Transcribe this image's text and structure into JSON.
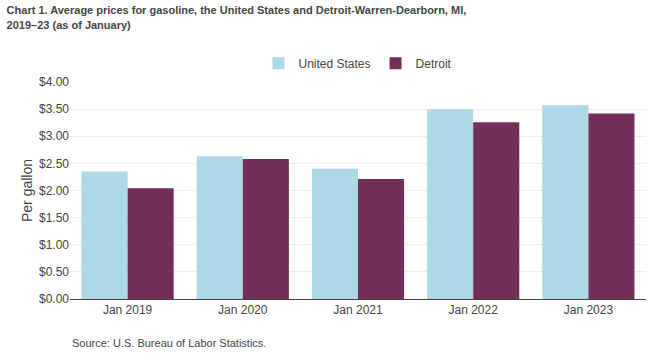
{
  "chart_data": {
    "type": "bar",
    "title": "Chart 1. Average prices for gasoline, the United States and Detroit-Warren-Dearborn, MI,\n2019–23 (as of January)",
    "ylabel": "Per gallon",
    "annotations": [
      "Source: U.S. Bureau of Labor Statistics."
    ],
    "categories": [
      "Jan 2019",
      "Jan 2020",
      "Jan 2021",
      "Jan 2022",
      "Jan 2023"
    ],
    "series": [
      {
        "name": "United States",
        "color": "#ADD8E6",
        "values": [
          2.35,
          2.63,
          2.4,
          3.5,
          3.57
        ]
      },
      {
        "name": "Detroit",
        "color": "#722F57",
        "values": [
          2.04,
          2.58,
          2.21,
          3.26,
          3.42
        ]
      }
    ],
    "ylim": [
      0,
      4.0
    ],
    "yticks": [
      {
        "value": 0.0,
        "label": "$0.00"
      },
      {
        "value": 0.5,
        "label": "$0.50"
      },
      {
        "value": 1.0,
        "label": "$1.00"
      },
      {
        "value": 1.5,
        "label": "$1.50"
      },
      {
        "value": 2.0,
        "label": "$2.00"
      },
      {
        "value": 2.5,
        "label": "$2.50"
      },
      {
        "value": 3.0,
        "label": "$3.00"
      },
      {
        "value": 3.5,
        "label": "$3.50"
      },
      {
        "value": 4.0,
        "label": "$4.00"
      }
    ],
    "grid": true,
    "legend": "top"
  }
}
